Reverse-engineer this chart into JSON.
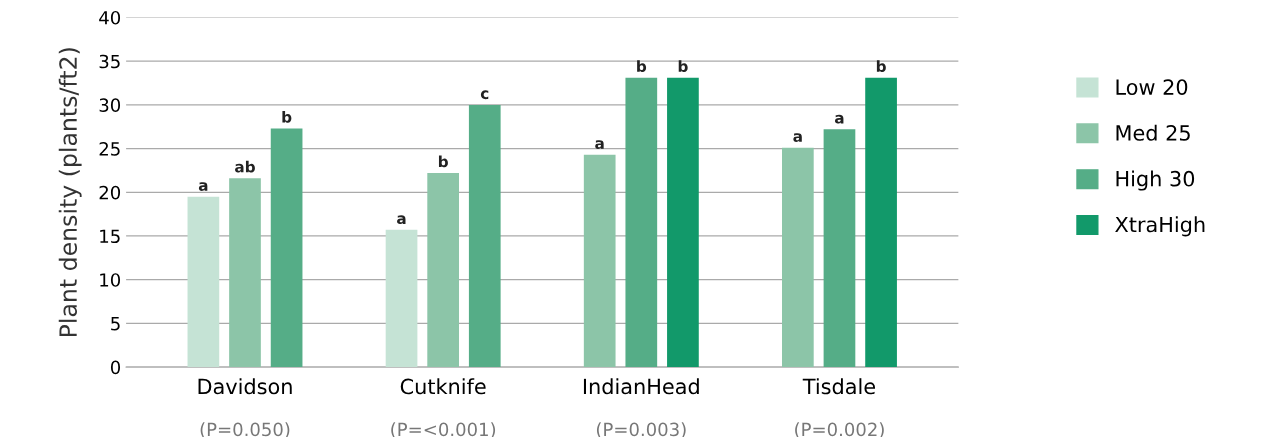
{
  "chart_data": {
    "type": "bar",
    "ylabel": "Plant density (plants/ft2)",
    "categories": [
      "Davidson",
      "Cutknife",
      "IndianHead",
      "Tisdale"
    ],
    "annotations": [
      "(P=0.050)",
      "(P=<0.001)",
      "(P=0.003)",
      "(P=0.002)"
    ],
    "series": [
      {
        "name": "Low 20",
        "color": "#c5e3d5",
        "values": [
          19.5,
          15.7,
          null,
          null
        ],
        "value_labels": [
          "a",
          "a",
          null,
          null
        ]
      },
      {
        "name": "Med 25",
        "color": "#8cc5a8",
        "values": [
          21.6,
          22.2,
          24.3,
          25.1
        ],
        "value_labels": [
          "ab",
          "b",
          "a",
          "a"
        ]
      },
      {
        "name": "High 30",
        "color": "#55ad87",
        "values": [
          27.3,
          30.0,
          33.1,
          27.2
        ],
        "value_labels": [
          "b",
          "c",
          "b",
          "a"
        ]
      },
      {
        "name": "XtraHigh",
        "color": "#12996a",
        "values": [
          null,
          null,
          33.1,
          33.1
        ],
        "value_labels": [
          null,
          null,
          "b",
          "b"
        ]
      }
    ],
    "ylim": [
      0,
      40
    ],
    "yticks": [
      0,
      5,
      10,
      15,
      20,
      25,
      30,
      35,
      40
    ],
    "grid": "y",
    "legend": "right"
  }
}
